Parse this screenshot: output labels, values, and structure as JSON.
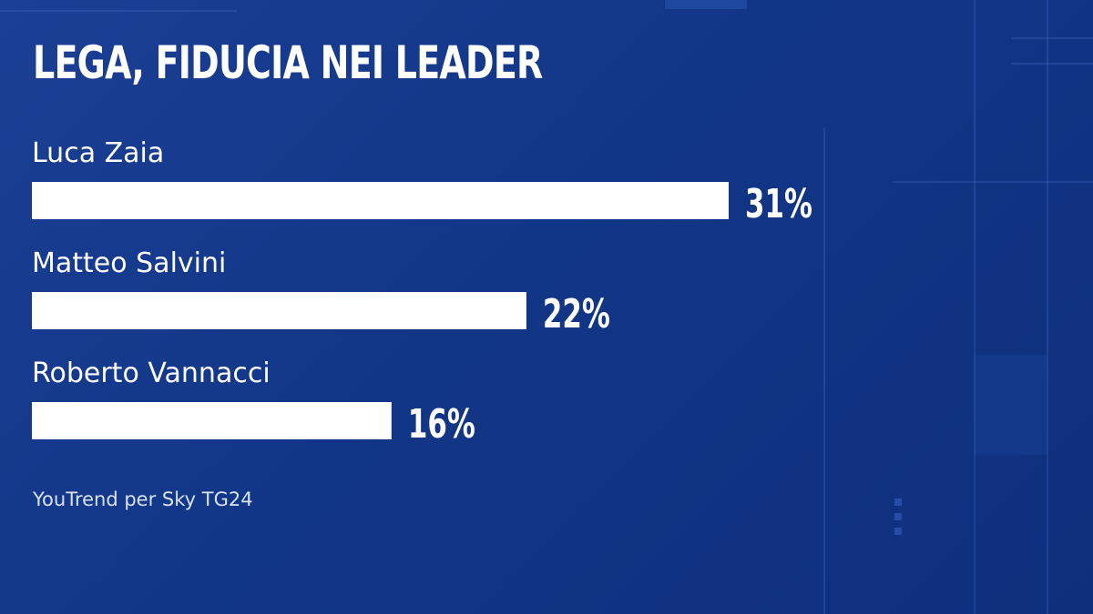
{
  "chart_data": {
    "type": "bar",
    "orientation": "horizontal",
    "title": "LEGA, FIDUCIA NEI LEADER",
    "categories": [
      "Luca Zaia",
      "Matteo Salvini",
      "Roberto Vannacci"
    ],
    "values": [
      31,
      22,
      16
    ],
    "value_labels": [
      "31%",
      "22%",
      "16%"
    ],
    "unit": "%",
    "grid": false,
    "legend": "none"
  },
  "source": "YouTrend per Sky TG24",
  "colors": {
    "background": "#123687",
    "bar": "#ffffff",
    "text": "#ffffff"
  }
}
